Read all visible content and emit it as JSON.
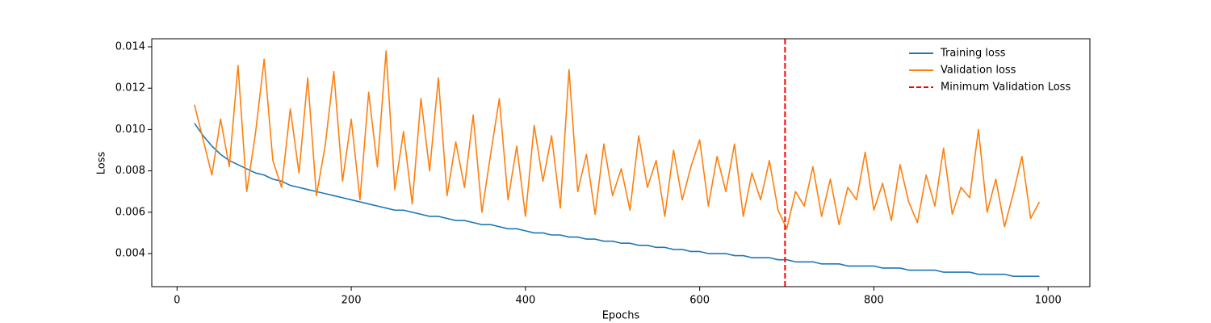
{
  "chart_data": {
    "type": "line",
    "xlabel": "Epochs",
    "ylabel": "Loss",
    "xlim": [
      -29,
      1048
    ],
    "ylim": [
      0.0024,
      0.01439
    ],
    "xticks": [
      0,
      200,
      400,
      600,
      800,
      1000
    ],
    "yticks": [
      0.004,
      0.006,
      0.008,
      {
        "value": 0.01,
        "label": "0.010"
      },
      0.012,
      0.014
    ],
    "legend": "upper right",
    "x": [
      20,
      30,
      40,
      50,
      60,
      70,
      80,
      90,
      100,
      110,
      120,
      130,
      140,
      150,
      160,
      170,
      180,
      190,
      200,
      210,
      220,
      230,
      240,
      250,
      260,
      270,
      280,
      290,
      300,
      310,
      320,
      330,
      340,
      350,
      360,
      370,
      380,
      390,
      400,
      410,
      420,
      430,
      440,
      450,
      460,
      470,
      480,
      490,
      500,
      510,
      520,
      530,
      540,
      550,
      560,
      570,
      580,
      590,
      600,
      610,
      620,
      630,
      640,
      650,
      660,
      670,
      680,
      690,
      700,
      710,
      720,
      730,
      740,
      750,
      760,
      770,
      780,
      790,
      800,
      810,
      820,
      830,
      840,
      850,
      860,
      870,
      880,
      890,
      900,
      910,
      920,
      930,
      940,
      950,
      960,
      970,
      980,
      990
    ],
    "series": [
      {
        "name": "Training loss",
        "color": "#1f77b4",
        "values": [
          0.0103,
          0.0097,
          0.0092,
          0.0088,
          0.0085,
          0.0083,
          0.0081,
          0.0079,
          0.0078,
          0.0076,
          0.0075,
          0.0073,
          0.0072,
          0.0071,
          0.007,
          0.0069,
          0.0068,
          0.0067,
          0.0066,
          0.0065,
          0.0064,
          0.0063,
          0.0062,
          0.0061,
          0.0061,
          0.006,
          0.0059,
          0.0058,
          0.0058,
          0.0057,
          0.0056,
          0.0056,
          0.0055,
          0.0054,
          0.0054,
          0.0053,
          0.0052,
          0.0052,
          0.0051,
          0.005,
          0.005,
          0.0049,
          0.0049,
          0.0048,
          0.0048,
          0.0047,
          0.0047,
          0.0046,
          0.0046,
          0.0045,
          0.0045,
          0.0044,
          0.0044,
          0.0043,
          0.0043,
          0.0042,
          0.0042,
          0.0041,
          0.0041,
          0.004,
          0.004,
          0.004,
          0.0039,
          0.0039,
          0.0038,
          0.0038,
          0.0038,
          0.0037,
          0.0037,
          0.0036,
          0.0036,
          0.0036,
          0.0035,
          0.0035,
          0.0035,
          0.0034,
          0.0034,
          0.0034,
          0.0034,
          0.0033,
          0.0033,
          0.0033,
          0.0032,
          0.0032,
          0.0032,
          0.0032,
          0.0031,
          0.0031,
          0.0031,
          0.0031,
          0.003,
          0.003,
          0.003,
          0.003,
          0.0029,
          0.0029,
          0.0029,
          0.0029
        ]
      },
      {
        "name": "Validation loss",
        "color": "#ff7f0e",
        "values": [
          0.0112,
          0.0095,
          0.0078,
          0.0105,
          0.0082,
          0.0131,
          0.007,
          0.0098,
          0.0134,
          0.0085,
          0.0072,
          0.011,
          0.0079,
          0.0125,
          0.0068,
          0.0092,
          0.0128,
          0.0075,
          0.0105,
          0.0066,
          0.0118,
          0.0082,
          0.0138,
          0.0071,
          0.0099,
          0.0064,
          0.0115,
          0.008,
          0.0125,
          0.0068,
          0.0094,
          0.0072,
          0.0107,
          0.006,
          0.0088,
          0.0115,
          0.0066,
          0.0092,
          0.0058,
          0.0102,
          0.0075,
          0.0097,
          0.0062,
          0.0129,
          0.007,
          0.0088,
          0.0059,
          0.0093,
          0.0068,
          0.0081,
          0.0061,
          0.0097,
          0.0072,
          0.0085,
          0.0058,
          0.009,
          0.0066,
          0.0082,
          0.0095,
          0.0063,
          0.0087,
          0.007,
          0.0093,
          0.0058,
          0.0079,
          0.0066,
          0.0085,
          0.0061,
          0.0052,
          0.007,
          0.0063,
          0.0082,
          0.0058,
          0.0076,
          0.0054,
          0.0072,
          0.0066,
          0.0089,
          0.0061,
          0.0074,
          0.0056,
          0.0083,
          0.0065,
          0.0055,
          0.0078,
          0.0063,
          0.0091,
          0.0059,
          0.0072,
          0.0067,
          0.01,
          0.006,
          0.0076,
          0.0053,
          0.0069,
          0.0087,
          0.0057,
          0.0065
        ]
      }
    ],
    "vlines": [
      {
        "name": "Minimum Validation Loss",
        "color": "#ff0000",
        "x": 698
      }
    ]
  }
}
